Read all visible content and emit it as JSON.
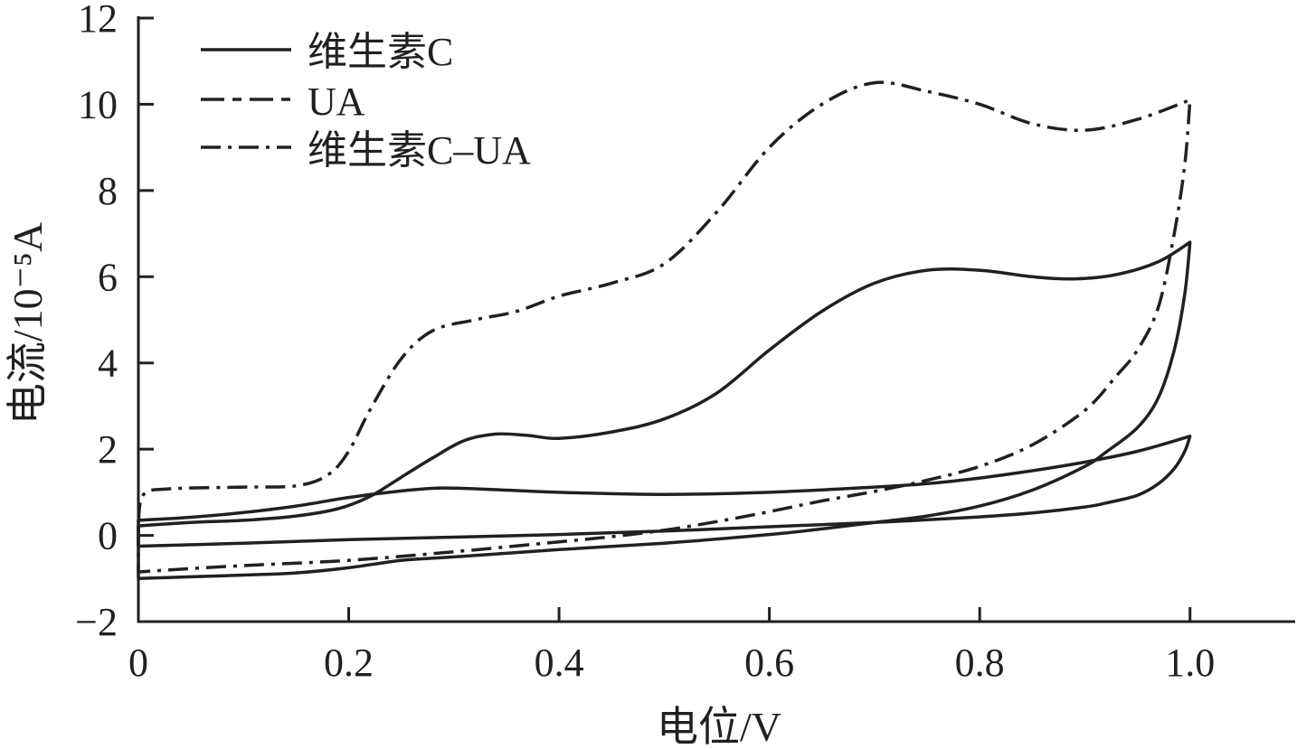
{
  "chart_data": {
    "type": "line",
    "title": "",
    "xlabel": "电位/V",
    "ylabel": "电流/10⁻⁵A",
    "xlim": [
      0,
      1.1
    ],
    "ylim": [
      -2,
      12
    ],
    "x_ticks": [
      0,
      0.2,
      0.4,
      0.6,
      0.8,
      1.0
    ],
    "x_tick_labels": [
      "0",
      "0.2",
      "0.4",
      "0.6",
      "0.8",
      "1.0"
    ],
    "y_ticks": [
      -2,
      0,
      2,
      4,
      6,
      8,
      10,
      12
    ],
    "y_tick_labels": [
      "−2",
      "0",
      "2",
      "4",
      "6",
      "8",
      "10",
      "12"
    ],
    "grid": false,
    "legend_position": "top-left",
    "color": "#231f20",
    "series": [
      {
        "name": "维生素C",
        "legend_style": "solid",
        "curve_style": "solid",
        "forward_scan": [
          [
            0,
            0.35
          ],
          [
            0.05,
            0.42
          ],
          [
            0.1,
            0.53
          ],
          [
            0.15,
            0.68
          ],
          [
            0.2,
            0.88
          ],
          [
            0.25,
            1.03
          ],
          [
            0.29,
            1.1
          ],
          [
            0.35,
            1.05
          ],
          [
            0.4,
            1.0
          ],
          [
            0.5,
            0.95
          ],
          [
            0.6,
            1.0
          ],
          [
            0.7,
            1.12
          ],
          [
            0.75,
            1.2
          ],
          [
            0.8,
            1.33
          ],
          [
            0.85,
            1.5
          ],
          [
            0.9,
            1.7
          ],
          [
            0.95,
            1.95
          ],
          [
            1.0,
            2.3
          ]
        ],
        "reverse_scan": [
          [
            1.0,
            2.3
          ],
          [
            0.995,
            1.95
          ],
          [
            0.985,
            1.55
          ],
          [
            0.97,
            1.2
          ],
          [
            0.95,
            0.93
          ],
          [
            0.92,
            0.75
          ],
          [
            0.9,
            0.66
          ],
          [
            0.85,
            0.52
          ],
          [
            0.8,
            0.43
          ],
          [
            0.7,
            0.3
          ],
          [
            0.6,
            0.2
          ],
          [
            0.5,
            0.1
          ],
          [
            0.4,
            0.02
          ],
          [
            0.3,
            -0.04
          ],
          [
            0.2,
            -0.1
          ],
          [
            0.1,
            -0.18
          ],
          [
            0,
            -0.25
          ]
        ]
      },
      {
        "name": "UA",
        "legend_style": "long-short-dash",
        "curve_style": "solid",
        "forward_scan": [
          [
            0,
            0.22
          ],
          [
            0.05,
            0.3
          ],
          [
            0.1,
            0.35
          ],
          [
            0.15,
            0.45
          ],
          [
            0.19,
            0.62
          ],
          [
            0.22,
            0.9
          ],
          [
            0.25,
            1.35
          ],
          [
            0.28,
            1.8
          ],
          [
            0.31,
            2.2
          ],
          [
            0.34,
            2.35
          ],
          [
            0.37,
            2.32
          ],
          [
            0.4,
            2.25
          ],
          [
            0.45,
            2.4
          ],
          [
            0.5,
            2.7
          ],
          [
            0.55,
            3.3
          ],
          [
            0.6,
            4.3
          ],
          [
            0.65,
            5.2
          ],
          [
            0.7,
            5.85
          ],
          [
            0.75,
            6.15
          ],
          [
            0.8,
            6.15
          ],
          [
            0.85,
            6.0
          ],
          [
            0.89,
            5.95
          ],
          [
            0.93,
            6.05
          ],
          [
            0.97,
            6.35
          ],
          [
            1.0,
            6.8
          ]
        ],
        "reverse_scan": [
          [
            1.0,
            6.8
          ],
          [
            0.995,
            5.6
          ],
          [
            0.985,
            4.3
          ],
          [
            0.97,
            3.2
          ],
          [
            0.95,
            2.5
          ],
          [
            0.92,
            1.93
          ],
          [
            0.9,
            1.6
          ],
          [
            0.85,
            1.05
          ],
          [
            0.8,
            0.68
          ],
          [
            0.75,
            0.45
          ],
          [
            0.7,
            0.3
          ],
          [
            0.65,
            0.15
          ],
          [
            0.6,
            0.02
          ],
          [
            0.5,
            -0.18
          ],
          [
            0.4,
            -0.33
          ],
          [
            0.3,
            -0.5
          ],
          [
            0.25,
            -0.58
          ],
          [
            0.2,
            -0.75
          ],
          [
            0.15,
            -0.87
          ],
          [
            0.1,
            -0.92
          ],
          [
            0.05,
            -0.96
          ],
          [
            0,
            -1.0
          ]
        ]
      },
      {
        "name": "维生素C–UA",
        "legend_style": "dash-dot",
        "curve_style": "dash-dot",
        "forward_scan": [
          [
            0,
            0.3
          ],
          [
            0.005,
            0.95
          ],
          [
            0.03,
            1.08
          ],
          [
            0.1,
            1.12
          ],
          [
            0.15,
            1.15
          ],
          [
            0.18,
            1.4
          ],
          [
            0.2,
            1.95
          ],
          [
            0.22,
            2.9
          ],
          [
            0.25,
            4.1
          ],
          [
            0.28,
            4.75
          ],
          [
            0.32,
            5.0
          ],
          [
            0.36,
            5.2
          ],
          [
            0.4,
            5.55
          ],
          [
            0.45,
            5.85
          ],
          [
            0.5,
            6.3
          ],
          [
            0.55,
            7.5
          ],
          [
            0.6,
            9.0
          ],
          [
            0.65,
            10.0
          ],
          [
            0.7,
            10.5
          ],
          [
            0.75,
            10.3
          ],
          [
            0.8,
            10.0
          ],
          [
            0.85,
            9.55
          ],
          [
            0.9,
            9.4
          ],
          [
            0.95,
            9.65
          ],
          [
            1.0,
            10.1
          ]
        ],
        "reverse_scan": [
          [
            1.0,
            10.1
          ],
          [
            0.995,
            8.6
          ],
          [
            0.985,
            7.0
          ],
          [
            0.97,
            5.3
          ],
          [
            0.95,
            4.3
          ],
          [
            0.93,
            3.7
          ],
          [
            0.9,
            2.9
          ],
          [
            0.85,
            2.1
          ],
          [
            0.8,
            1.6
          ],
          [
            0.75,
            1.28
          ],
          [
            0.7,
            1.02
          ],
          [
            0.65,
            0.8
          ],
          [
            0.6,
            0.55
          ],
          [
            0.55,
            0.32
          ],
          [
            0.5,
            0.12
          ],
          [
            0.45,
            -0.03
          ],
          [
            0.4,
            -0.15
          ],
          [
            0.3,
            -0.38
          ],
          [
            0.2,
            -0.58
          ],
          [
            0.1,
            -0.7
          ],
          [
            0.03,
            -0.8
          ],
          [
            0,
            -0.85
          ]
        ]
      }
    ]
  }
}
